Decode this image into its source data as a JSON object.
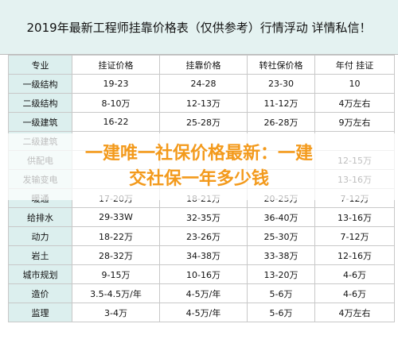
{
  "header": {
    "title": "2019年最新工程师挂靠价格表（仅供参考）行情浮动 详情私信！"
  },
  "table": {
    "columns": [
      "专业",
      "挂证价格",
      "挂靠价格",
      "转社保价格",
      "年付 挂证"
    ],
    "rows": [
      [
        "一级结构",
        "19-23",
        "24-28",
        "23-30",
        "10"
      ],
      [
        "二级结构",
        "8-10万",
        "12-13万",
        "11-12万",
        "4万左右"
      ],
      [
        "一级建筑",
        "16-22",
        "25-28万",
        "26-28万",
        "9万左右"
      ],
      [
        "二级建筑",
        null,
        null,
        null,
        null
      ],
      [
        "供配电",
        null,
        null,
        null,
        "12-15万"
      ],
      [
        "发输变电",
        null,
        null,
        null,
        "13-16万"
      ],
      [
        "暖通",
        "17-20万",
        "18-21万",
        "20-25万",
        "7-12万"
      ],
      [
        "给排水",
        "29-33W",
        "32-35万",
        "36-40万",
        "13-16万"
      ],
      [
        "动力",
        "18-22万",
        "23-26万",
        "25-30万",
        "7-12万"
      ],
      [
        "岩土",
        "28-32万",
        "34-38万",
        "33-38万",
        "12-16万"
      ],
      [
        "城市规划",
        "9-15万",
        "10-16万",
        "13-20万",
        "4-6万"
      ],
      [
        "造价",
        "3.5-4.5万/年",
        "4-5万/年",
        "5-6万",
        "4-6万"
      ],
      [
        "监理",
        "3-4万",
        "4-5万/年",
        "5-6万",
        "4万左右"
      ]
    ]
  },
  "overlay": {
    "lines": [
      "一建唯一社保价格最新：一建",
      "交社保一年多少钱"
    ]
  }
}
